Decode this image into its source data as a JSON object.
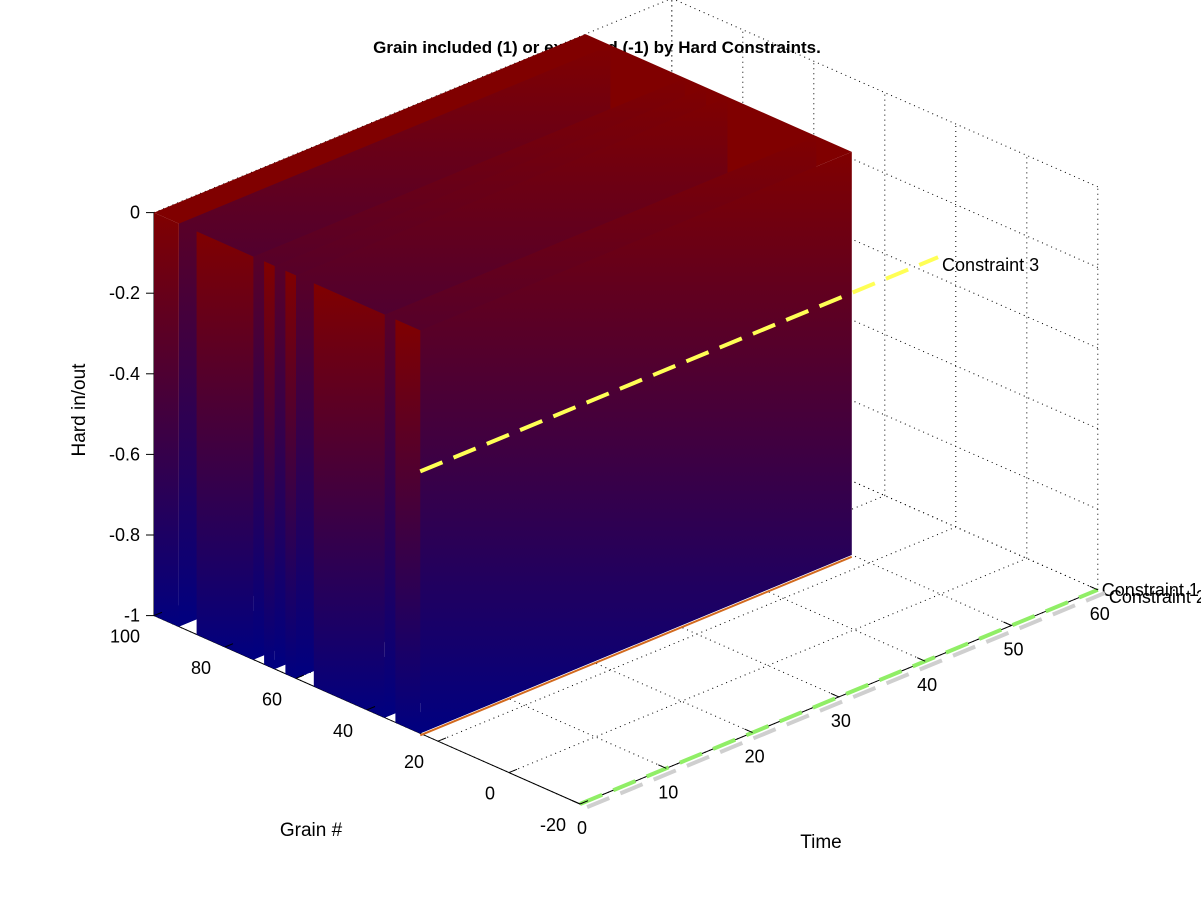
{
  "chart_data": {
    "type": "surface3d",
    "title": "Grain included (1) or excluded (-1) by Hard Constraints.",
    "xlabel": "Time",
    "ylabel": "Grain #",
    "zlabel": "Hard in/out",
    "xlim": [
      0,
      60
    ],
    "ylim": [
      -20,
      100
    ],
    "zlim": [
      -1,
      0
    ],
    "x_ticks": [
      "0",
      "10",
      "20",
      "30",
      "40",
      "50",
      "60"
    ],
    "y_ticks": [
      "-20",
      "0",
      "20",
      "40",
      "60",
      "80",
      "100"
    ],
    "z_ticks": [
      "-1",
      "-0.8",
      "-0.6",
      "-0.4",
      "-0.2",
      "0"
    ],
    "grid": true,
    "colormap": [
      "#000080",
      "#800000"
    ],
    "surface": {
      "time_range": [
        0,
        50
      ],
      "grain_range": [
        25,
        100
      ],
      "value_excluded": -1,
      "value_included": 0,
      "excluded_grain_bands": [
        [
          25,
          32
        ],
        [
          35,
          55
        ],
        [
          60,
          63
        ],
        [
          66,
          69
        ],
        [
          72,
          88
        ],
        [
          93,
          100
        ]
      ]
    },
    "constraint_lines": [
      {
        "label": "Constraint 1",
        "color": "#90ee66",
        "time": [
          0,
          60
        ],
        "grain": -20,
        "value": -1
      },
      {
        "label": "Constraint 2",
        "color": "#cfcfcf",
        "time": [
          0,
          60
        ],
        "grain": -22,
        "value": -1
      },
      {
        "label": "Constraint 3",
        "color": "#ffff55",
        "time": [
          0,
          60
        ],
        "grain": 25,
        "value": -0.35
      }
    ]
  }
}
